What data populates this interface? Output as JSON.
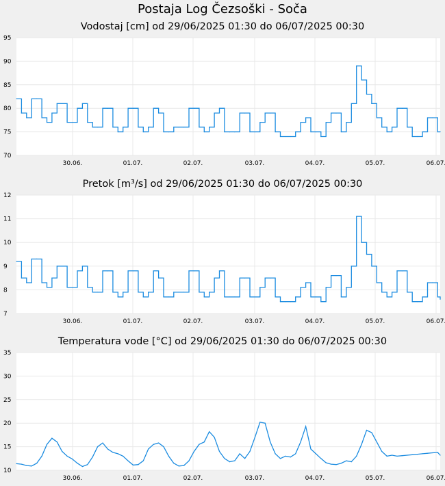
{
  "page_title": "Postaja Log Čezsoški - Soča",
  "colors": {
    "line": "#1a8be0",
    "grid": "#e8e8e8",
    "plot_bg": "#ffffff",
    "page_bg": "#f0f0f0"
  },
  "chart_data": [
    {
      "type": "line",
      "title": "Vodostaj [cm] od 29/06/2025 01:30 do 06/07/2025 00:30",
      "xlabel": "",
      "ylabel": "",
      "ylim": [
        70,
        95
      ],
      "yticks": [
        "70",
        "75",
        "80",
        "85",
        "90",
        "95"
      ],
      "xticks": [
        "30.06.",
        "01.07.",
        "02.07.",
        "03.07.",
        "04.07.",
        "05.07.",
        "06.07."
      ],
      "x": [
        0,
        2,
        4,
        6,
        8,
        10,
        12,
        14,
        16,
        18,
        20,
        22,
        24,
        26,
        28,
        30,
        32,
        34,
        36,
        38,
        40,
        42,
        44,
        46,
        48,
        50,
        52,
        54,
        56,
        58,
        60,
        62,
        64,
        66,
        68,
        70,
        72,
        74,
        76,
        78,
        80,
        82,
        84,
        86,
        88,
        90,
        92,
        94,
        96,
        98,
        100,
        102,
        104,
        106,
        108,
        110,
        112,
        114,
        116,
        118,
        120,
        122,
        124,
        126,
        128,
        130,
        132,
        134,
        136,
        138,
        140,
        142,
        144,
        146,
        148,
        150,
        152,
        154,
        156,
        158,
        160,
        162,
        164,
        166,
        167
      ],
      "series": [
        {
          "name": "",
          "values": [
            82,
            79,
            78,
            82,
            82,
            78,
            77,
            79,
            81,
            81,
            77,
            77,
            80,
            81,
            77,
            76,
            76,
            80,
            80,
            76,
            75,
            76,
            80,
            80,
            76,
            75,
            76,
            80,
            79,
            75,
            75,
            76,
            76,
            76,
            80,
            80,
            76,
            75,
            76,
            79,
            80,
            75,
            75,
            75,
            79,
            79,
            75,
            75,
            77,
            79,
            79,
            75,
            74,
            74,
            74,
            75,
            77,
            78,
            75,
            75,
            74,
            77,
            79,
            79,
            75,
            77,
            81,
            89,
            86,
            83,
            81,
            78,
            76,
            75,
            76,
            80,
            80,
            76,
            74,
            74,
            75,
            78,
            78,
            75,
            75
          ]
        }
      ]
    },
    {
      "type": "line",
      "title": "Pretok [m³/s] od 29/06/2025 01:30 do 06/07/2025 00:30",
      "xlabel": "",
      "ylabel": "",
      "ylim": [
        7,
        12
      ],
      "yticks": [
        "7",
        "8",
        "9",
        "10",
        "11",
        "12"
      ],
      "xticks": [
        "30.06.",
        "01.07.",
        "02.07.",
        "03.07.",
        "04.07.",
        "05.07.",
        "06.07."
      ],
      "x": [
        0,
        2,
        4,
        6,
        8,
        10,
        12,
        14,
        16,
        18,
        20,
        22,
        24,
        26,
        28,
        30,
        32,
        34,
        36,
        38,
        40,
        42,
        44,
        46,
        48,
        50,
        52,
        54,
        56,
        58,
        60,
        62,
        64,
        66,
        68,
        70,
        72,
        74,
        76,
        78,
        80,
        82,
        84,
        86,
        88,
        90,
        92,
        94,
        96,
        98,
        100,
        102,
        104,
        106,
        108,
        110,
        112,
        114,
        116,
        118,
        120,
        122,
        124,
        126,
        128,
        130,
        132,
        134,
        136,
        138,
        140,
        142,
        144,
        146,
        148,
        150,
        152,
        154,
        156,
        158,
        160,
        162,
        164,
        166,
        167
      ],
      "series": [
        {
          "name": "",
          "values": [
            9.2,
            8.5,
            8.3,
            9.3,
            9.3,
            8.3,
            8.1,
            8.5,
            9.0,
            9.0,
            8.1,
            8.1,
            8.8,
            9.0,
            8.1,
            7.9,
            7.9,
            8.8,
            8.8,
            7.9,
            7.7,
            7.9,
            8.8,
            8.8,
            7.9,
            7.7,
            7.9,
            8.8,
            8.5,
            7.7,
            7.7,
            7.9,
            7.9,
            7.9,
            8.8,
            8.8,
            7.9,
            7.7,
            7.9,
            8.5,
            8.8,
            7.7,
            7.7,
            7.7,
            8.5,
            8.5,
            7.7,
            7.7,
            8.1,
            8.5,
            8.5,
            7.7,
            7.5,
            7.5,
            7.5,
            7.7,
            8.1,
            8.3,
            7.7,
            7.7,
            7.5,
            8.1,
            8.6,
            8.6,
            7.7,
            8.1,
            9.0,
            11.1,
            10.0,
            9.5,
            9.0,
            8.3,
            7.9,
            7.7,
            7.9,
            8.8,
            8.8,
            7.9,
            7.5,
            7.5,
            7.7,
            8.3,
            8.3,
            7.7,
            7.6
          ]
        }
      ]
    },
    {
      "type": "line",
      "title": "Temperatura vode [°C] od 29/06/2025 01:30 do 06/07/2025 00:30",
      "xlabel": "",
      "ylabel": "",
      "ylim": [
        10,
        35
      ],
      "yticks": [
        "10",
        "15",
        "20",
        "25",
        "30",
        "35"
      ],
      "xticks": [
        "30.06.",
        "01.07.",
        "02.07.",
        "03.07.",
        "04.07.",
        "05.07.",
        "06.07."
      ],
      "x": [
        0,
        2,
        4,
        6,
        8,
        10,
        12,
        14,
        16,
        18,
        20,
        22,
        24,
        26,
        28,
        30,
        32,
        34,
        36,
        38,
        40,
        42,
        44,
        46,
        48,
        50,
        52,
        54,
        56,
        58,
        60,
        62,
        64,
        66,
        68,
        70,
        72,
        74,
        76,
        78,
        80,
        82,
        84,
        86,
        88,
        90,
        92,
        94,
        96,
        98,
        100,
        102,
        104,
        106,
        108,
        110,
        112,
        114,
        116,
        118,
        120,
        122,
        124,
        126,
        128,
        130,
        132,
        134,
        136,
        138,
        140,
        142,
        144,
        146,
        148,
        150,
        152,
        154,
        156,
        158,
        160,
        162,
        164,
        166,
        167
      ],
      "series": [
        {
          "name": "",
          "values": [
            11.4,
            11.3,
            11.0,
            10.9,
            11.5,
            13.0,
            15.5,
            16.8,
            16.0,
            14.0,
            13.0,
            12.4,
            11.5,
            10.8,
            11.2,
            12.8,
            15.0,
            15.8,
            14.5,
            13.8,
            13.5,
            13.0,
            12.0,
            11.1,
            11.2,
            12.0,
            14.5,
            15.5,
            15.8,
            15.0,
            13.0,
            11.5,
            10.9,
            11.0,
            12.0,
            14.0,
            15.5,
            16.0,
            18.2,
            17.0,
            14.0,
            12.5,
            11.8,
            12.0,
            13.5,
            12.5,
            14.0,
            17.0,
            20.2,
            20.0,
            16.0,
            13.5,
            12.5,
            13.0,
            12.8,
            13.5,
            16.0,
            19.3,
            14.5,
            13.5,
            12.5,
            11.6,
            11.3,
            11.2,
            11.5,
            12.0,
            11.8,
            13.0,
            15.5,
            18.5,
            18.0,
            16.0,
            14.0,
            13.0,
            13.2,
            13.0,
            13.1,
            13.2,
            13.3,
            13.4,
            13.5,
            13.6,
            13.7,
            13.8,
            13.2
          ]
        }
      ]
    }
  ]
}
